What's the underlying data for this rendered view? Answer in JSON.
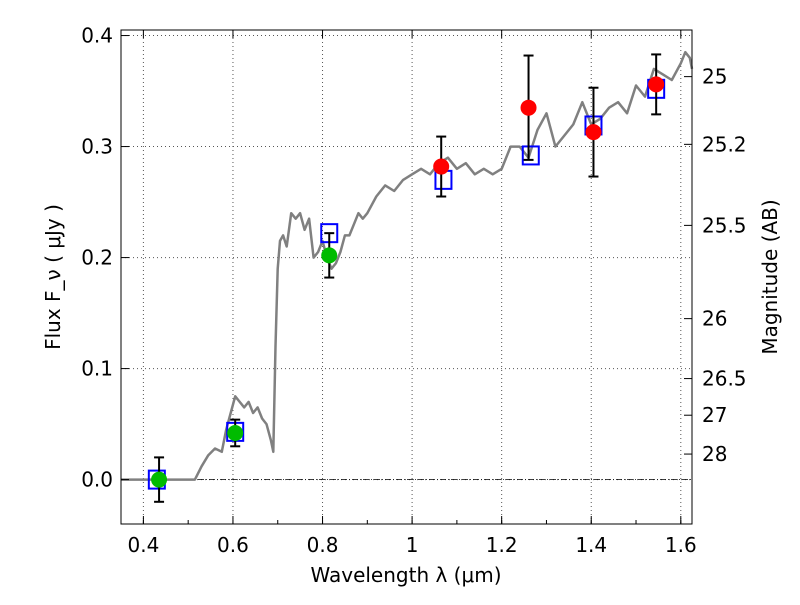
{
  "chart_data": {
    "type": "scatter",
    "xlabel": "Wavelength  λ (μm)",
    "ylabel": "Flux  F_ν  ( μJy )",
    "ylabel_right": "Magnitude (AB)",
    "xlim": [
      0.35,
      1.625
    ],
    "ylim": [
      -0.04,
      0.405
    ],
    "x_ticks": [
      0.4,
      0.6,
      0.8,
      1.0,
      1.2,
      1.4,
      1.6
    ],
    "x_tick_labels": [
      "0.4",
      "0.6",
      "0.8",
      "1",
      "1.2",
      "1.4",
      "1.6"
    ],
    "y_ticks": [
      0.0,
      0.1,
      0.2,
      0.3,
      0.4
    ],
    "y_tick_labels": [
      "0.0",
      "0.1",
      "0.2",
      "0.3",
      "0.4"
    ],
    "right_ticks": [
      {
        "label": "25",
        "flux": 0.363
      },
      {
        "label": "25.2",
        "flux": 0.302
      },
      {
        "label": "25.5",
        "flux": 0.229
      },
      {
        "label": "26",
        "flux": 0.145
      },
      {
        "label": "26.5",
        "flux": 0.091
      },
      {
        "label": "27",
        "flux": 0.058
      },
      {
        "label": "28",
        "flux": 0.023
      }
    ],
    "grid": true,
    "zero_line": true,
    "colors": {
      "model": "#808080",
      "box": "#0000ff",
      "green": "#00bb00",
      "red": "#ff0000",
      "errorbar": "#000000"
    },
    "model_spectrum": {
      "x": [
        0.35,
        0.4,
        0.45,
        0.5,
        0.515,
        0.53,
        0.545,
        0.56,
        0.575,
        0.585,
        0.595,
        0.605,
        0.615,
        0.625,
        0.635,
        0.645,
        0.655,
        0.665,
        0.675,
        0.685,
        0.69,
        0.695,
        0.7,
        0.705,
        0.712,
        0.72,
        0.73,
        0.74,
        0.75,
        0.76,
        0.77,
        0.78,
        0.79,
        0.8,
        0.81,
        0.82,
        0.83,
        0.84,
        0.85,
        0.86,
        0.87,
        0.88,
        0.89,
        0.9,
        0.92,
        0.94,
        0.96,
        0.98,
        1.0,
        1.02,
        1.04,
        1.06,
        1.08,
        1.1,
        1.12,
        1.14,
        1.16,
        1.18,
        1.2,
        1.22,
        1.24,
        1.26,
        1.28,
        1.3,
        1.32,
        1.34,
        1.36,
        1.38,
        1.4,
        1.42,
        1.44,
        1.46,
        1.48,
        1.5,
        1.52,
        1.54,
        1.56,
        1.58,
        1.6,
        1.61,
        1.62,
        1.625
      ],
      "y": [
        0.0,
        0.0,
        0.0,
        0.0,
        0.0,
        0.012,
        0.022,
        0.028,
        0.025,
        0.045,
        0.06,
        0.075,
        0.07,
        0.065,
        0.07,
        0.06,
        0.065,
        0.055,
        0.05,
        0.035,
        0.025,
        0.12,
        0.19,
        0.215,
        0.22,
        0.21,
        0.24,
        0.235,
        0.24,
        0.225,
        0.235,
        0.2,
        0.205,
        0.215,
        0.2,
        0.19,
        0.195,
        0.205,
        0.22,
        0.22,
        0.23,
        0.24,
        0.235,
        0.24,
        0.255,
        0.265,
        0.26,
        0.27,
        0.275,
        0.28,
        0.275,
        0.285,
        0.29,
        0.28,
        0.285,
        0.275,
        0.28,
        0.275,
        0.28,
        0.3,
        0.3,
        0.29,
        0.315,
        0.33,
        0.3,
        0.31,
        0.32,
        0.34,
        0.32,
        0.325,
        0.335,
        0.34,
        0.33,
        0.355,
        0.345,
        0.37,
        0.365,
        0.36,
        0.375,
        0.385,
        0.38,
        0.37
      ]
    },
    "series": [
      {
        "marker": "square",
        "color": "box",
        "x": [
          0.43,
          0.605,
          0.815,
          1.07,
          1.265,
          1.405,
          1.545
        ],
        "y": [
          0.0,
          0.043,
          0.222,
          0.27,
          0.292,
          0.319,
          0.352
        ]
      },
      {
        "marker": "circle",
        "color": "green",
        "x": [
          0.435,
          0.605,
          0.815
        ],
        "y": [
          0.0,
          0.042,
          0.202
        ],
        "err": [
          0.02,
          0.012,
          0.02
        ]
      },
      {
        "marker": "circle",
        "color": "red",
        "x": [
          1.065,
          1.26,
          1.405,
          1.545
        ],
        "y": [
          0.282,
          0.335,
          0.313,
          0.356
        ],
        "err": [
          0.027,
          0.047,
          0.04,
          0.027
        ]
      }
    ]
  }
}
